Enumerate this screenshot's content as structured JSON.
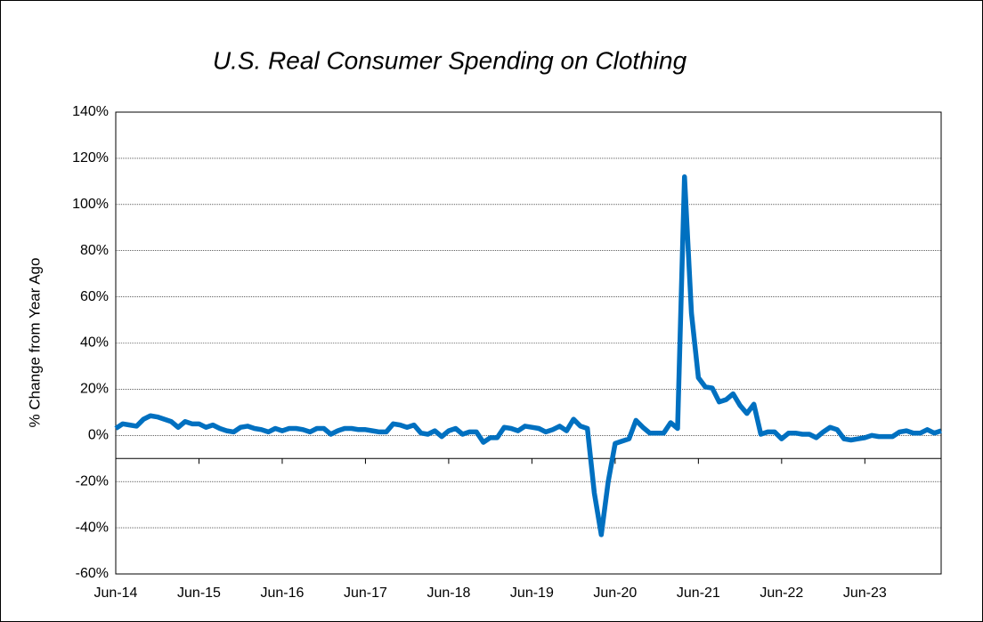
{
  "chart_data": {
    "type": "line",
    "title": "U.S. Real Consumer Spending on Clothing",
    "y_label": "% Change from Year Ago",
    "categories": [
      "Jun-14",
      null,
      null,
      null,
      null,
      null,
      null,
      null,
      null,
      null,
      null,
      null,
      "Jun-15",
      null,
      null,
      null,
      null,
      null,
      null,
      null,
      null,
      null,
      null,
      null,
      "Jun-16",
      null,
      null,
      null,
      null,
      null,
      null,
      null,
      null,
      null,
      null,
      null,
      "Jun-17",
      null,
      null,
      null,
      null,
      null,
      null,
      null,
      null,
      null,
      null,
      null,
      "Jun-18",
      null,
      null,
      null,
      null,
      null,
      null,
      null,
      null,
      null,
      null,
      null,
      "Jun-19",
      null,
      null,
      null,
      null,
      null,
      null,
      null,
      null,
      null,
      null,
      null,
      "Jun-20",
      null,
      null,
      null,
      null,
      null,
      null,
      null,
      null,
      null,
      null,
      null,
      "Jun-21",
      null,
      null,
      null,
      null,
      null,
      null,
      null,
      null,
      null,
      null,
      null,
      "Jun-22",
      null,
      null,
      null,
      null,
      null,
      null,
      null,
      null,
      null,
      null,
      null,
      "Jun-23",
      null,
      null,
      null,
      null,
      null,
      null,
      null,
      null,
      null,
      null,
      null
    ],
    "series": [
      {
        "color": "#0070c0",
        "values": [
          3,
          5,
          4.5,
          4,
          7,
          8.5,
          8,
          7,
          6,
          3.5,
          6,
          5,
          5,
          3.5,
          4.5,
          3,
          2,
          1.5,
          3.5,
          4,
          3,
          2.5,
          1.5,
          3,
          2,
          3,
          3,
          2.5,
          1.5,
          3,
          3,
          0.5,
          2,
          3,
          3,
          2.5,
          2.5,
          2,
          1.5,
          1.5,
          5,
          4.5,
          3.5,
          4.5,
          1,
          0.5,
          2,
          -0.5,
          2,
          3,
          0.5,
          1.5,
          1.5,
          -3,
          -1,
          -1,
          3.5,
          3,
          2,
          4,
          3.5,
          3,
          1.5,
          2.5,
          4,
          2,
          7,
          4,
          3,
          -25,
          -43,
          -20,
          -3.5,
          -2.5,
          -1.5,
          6.5,
          3.5,
          1,
          1,
          1,
          5.5,
          3,
          112,
          53,
          25,
          21,
          20.5,
          14.5,
          15.5,
          18,
          13,
          9.5,
          13.5,
          0.5,
          1.5,
          1.5,
          -1.5,
          1,
          1,
          0.5,
          0.5,
          -1,
          1.5,
          3.5,
          2.5,
          -1.5,
          -2,
          -1.5,
          -1,
          0,
          -0.5,
          -0.5,
          -0.5,
          1.5,
          2,
          1,
          1,
          2.5,
          1,
          2
        ]
      }
    ],
    "ylim": [
      -60,
      140
    ],
    "yticks": [
      {
        "value": -60,
        "label": "-60%"
      },
      {
        "value": -40,
        "label": "-40%"
      },
      {
        "value": -20,
        "label": "-20%"
      },
      {
        "value": 0,
        "label": "0%"
      },
      {
        "value": 20,
        "label": "20%"
      },
      {
        "value": 40,
        "label": "40%"
      },
      {
        "value": 60,
        "label": "60%"
      },
      {
        "value": 80,
        "label": "80%"
      },
      {
        "value": 100,
        "label": "100%"
      },
      {
        "value": 120,
        "label": "120%"
      },
      {
        "value": 140,
        "label": "140%"
      }
    ],
    "xaxis_cross": -10,
    "grid": true
  }
}
